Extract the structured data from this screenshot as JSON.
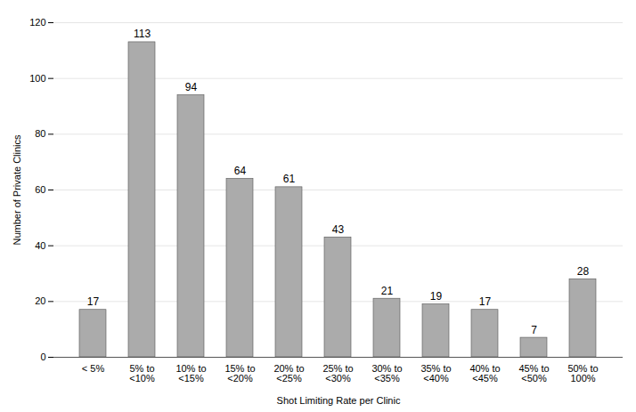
{
  "chart_data": {
    "type": "bar",
    "categories": [
      "< 5%",
      "5% to\n<10%",
      "10% to\n<15%",
      "15% to\n<20%",
      "20% to\n<25%",
      "25% to\n<30%",
      "30% to\n<35%",
      "35% to\n<40%",
      "40% to\n<45%",
      "45% to\n<50%",
      "50% to\n100%"
    ],
    "values": [
      17,
      113,
      94,
      64,
      61,
      43,
      21,
      19,
      17,
      7,
      28
    ],
    "color": "#ABABAB",
    "xlabel": "Shot Limiting Rate per Clinic",
    "ylabel": "Number of Private Clinics",
    "ylim": [
      0,
      120
    ],
    "yticks": [
      0,
      20,
      40,
      60,
      80,
      100,
      120
    ],
    "grid": true,
    "data_labels": true
  }
}
